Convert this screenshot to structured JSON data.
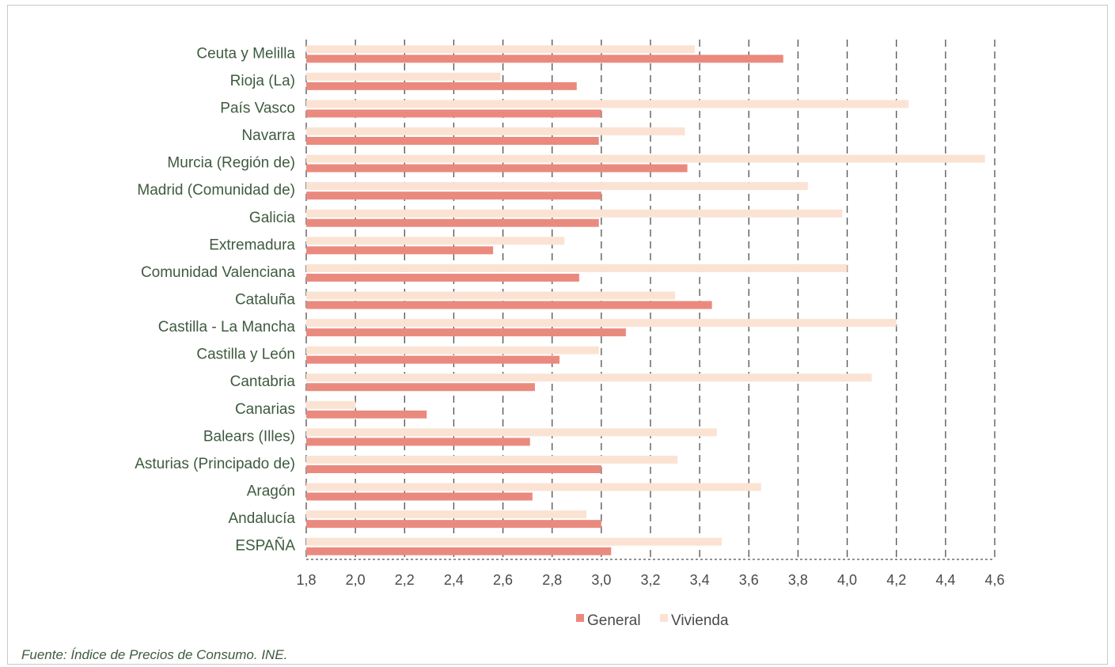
{
  "chart_data": {
    "type": "bar",
    "orientation": "horizontal",
    "categories": [
      "Ceuta y Melilla",
      "Rioja (La)",
      "País Vasco",
      "Navarra",
      "Murcia (Región de)",
      "Madrid (Comunidad de)",
      "Galicia",
      "Extremadura",
      "Comunidad Valenciana",
      "Cataluña",
      "Castilla - La Mancha",
      "Castilla y León",
      "Cantabria",
      "Canarias",
      "Balears (Illes)",
      "Asturias (Principado de)",
      "Aragón",
      "Andalucía",
      "ESPAÑA"
    ],
    "series": [
      {
        "name": "General",
        "color": "#ea8a7e",
        "values": [
          3.74,
          2.9,
          3.0,
          2.99,
          3.35,
          3.0,
          2.99,
          2.56,
          2.91,
          3.45,
          3.1,
          2.83,
          2.73,
          2.29,
          2.71,
          3.0,
          2.72,
          3.0,
          3.04
        ]
      },
      {
        "name": "Vivienda",
        "color": "#fbe3d3",
        "values": [
          3.38,
          2.59,
          4.25,
          3.34,
          4.56,
          3.84,
          3.98,
          2.85,
          4.0,
          3.3,
          4.2,
          2.99,
          4.1,
          2.0,
          3.47,
          3.31,
          3.65,
          2.94,
          3.49
        ]
      }
    ],
    "xlim": [
      1.8,
      4.6
    ],
    "xticks": [
      "1,8",
      "2,0",
      "2,2",
      "2,4",
      "2,6",
      "2,8",
      "3,0",
      "3,2",
      "3,4",
      "3,6",
      "3,8",
      "4,0",
      "4,2",
      "4,4",
      "4,6"
    ],
    "grid": "vertical dashed",
    "legend": "bottom",
    "title": "",
    "xlabel": "",
    "ylabel": ""
  },
  "source_note": "Fuente: Índice de Precios de Consumo. INE."
}
